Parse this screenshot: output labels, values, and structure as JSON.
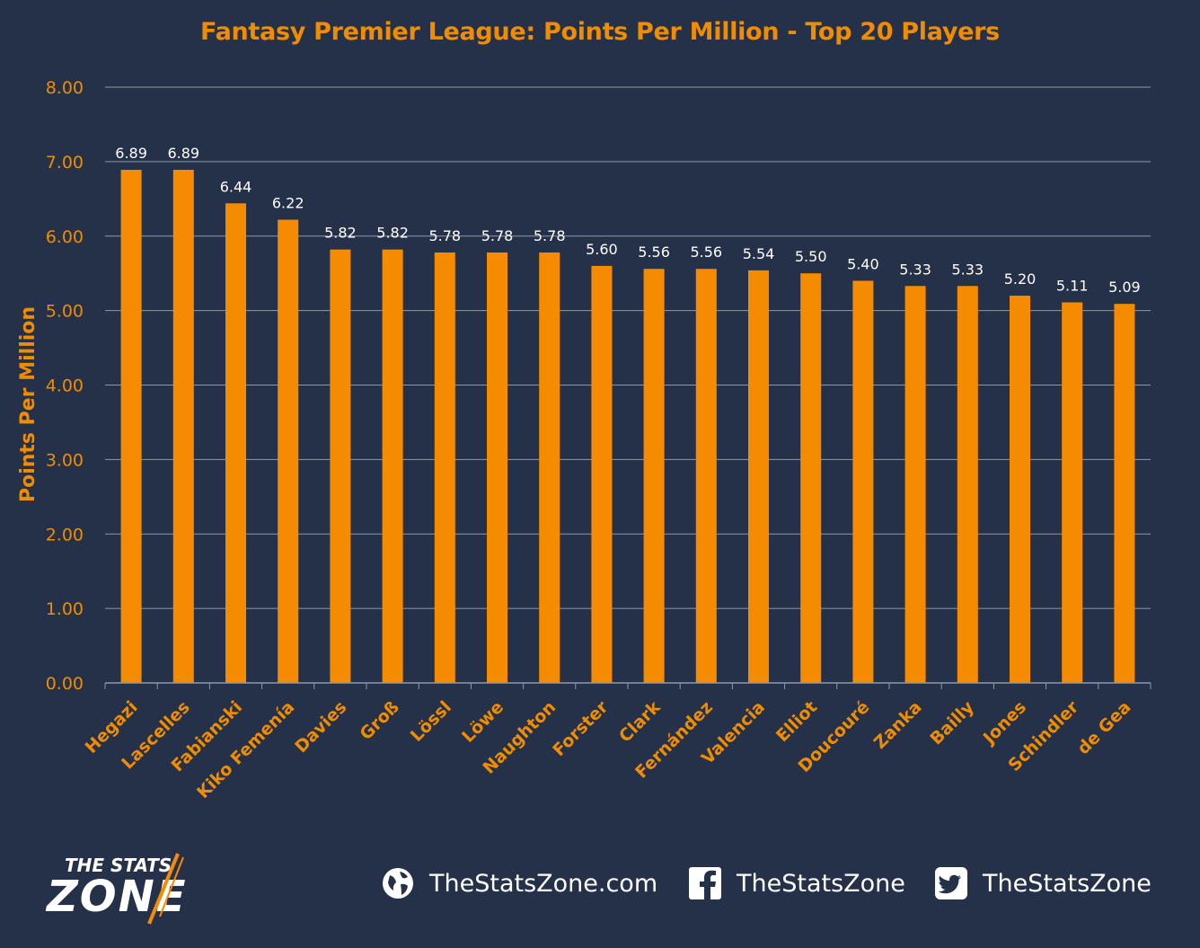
{
  "chart_data": {
    "type": "bar",
    "title": "Fantasy Premier League: Points Per Million - Top 20 Players",
    "xlabel": "",
    "ylabel": "Points Per Million",
    "ylim": [
      0,
      8
    ],
    "yticks": [
      "0.00",
      "1.00",
      "2.00",
      "3.00",
      "4.00",
      "5.00",
      "6.00",
      "7.00",
      "8.00"
    ],
    "grid": true,
    "categories": [
      "Hegazi",
      "Lascelles",
      "Fabianski",
      "Kiko Femenía",
      "Davies",
      "Groß",
      "Lössl",
      "Löwe",
      "Naughton",
      "Forster",
      "Clark",
      "Fernández",
      "Valencia",
      "Elliot",
      "Doucouré",
      "Zanka",
      "Bailly",
      "Jones",
      "Schindler",
      "de Gea"
    ],
    "values": [
      6.89,
      6.89,
      6.44,
      6.22,
      5.82,
      5.82,
      5.78,
      5.78,
      5.78,
      5.6,
      5.56,
      5.56,
      5.54,
      5.5,
      5.4,
      5.33,
      5.33,
      5.2,
      5.11,
      5.09
    ],
    "value_labels": [
      "6.89",
      "6.89",
      "6.44",
      "6.22",
      "5.82",
      "5.82",
      "5.78",
      "5.78",
      "5.78",
      "5.60",
      "5.56",
      "5.56",
      "5.54",
      "5.50",
      "5.40",
      "5.33",
      "5.33",
      "5.20",
      "5.11",
      "5.09"
    ],
    "colors": {
      "bar": "#f58b00",
      "accent": "#f08c00",
      "background": "#253148",
      "grid": "#8e98a8",
      "label": "#ffffff"
    }
  },
  "footer": {
    "brand_top": "THE STATS",
    "brand_bottom": "ZONE",
    "website": "TheStatsZone.com",
    "facebook": "TheStatsZone",
    "twitter": "TheStatsZone",
    "icons": [
      "globe-icon",
      "facebook-icon",
      "twitter-icon"
    ]
  }
}
